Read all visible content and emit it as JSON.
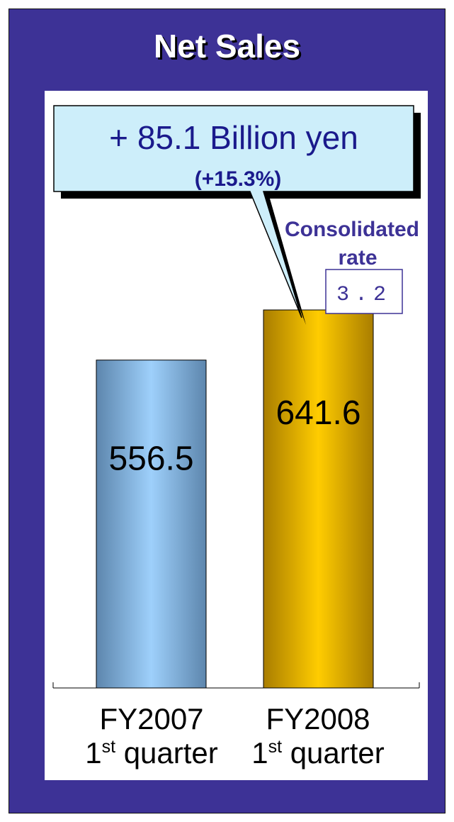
{
  "title": "Net Sales",
  "callout": {
    "main": "+ 85.1 Billion yen",
    "sub": "(+15.3%)"
  },
  "consolidated": {
    "label_line1": "Consolidated",
    "label_line2": "rate",
    "value": "3.2"
  },
  "categories": [
    {
      "year": "FY2007",
      "ordinal": "1",
      "suffix": "st",
      "word": "quarter"
    },
    {
      "year": "FY2008",
      "ordinal": "1",
      "suffix": "st",
      "word": "quarter"
    }
  ],
  "colors": {
    "frame": "#3d3296",
    "callout_fill": "#cdeefa",
    "callout_text": "#1a1a8c",
    "bar1": "#8fc3f0",
    "bar2": "#ffcc00"
  },
  "chart_data": {
    "type": "bar",
    "title": "Net Sales",
    "categories": [
      "FY2007 1st quarter",
      "FY2008 1st quarter"
    ],
    "values": [
      556.5,
      641.6
    ],
    "value_labels": [
      "556.5",
      "641.6"
    ],
    "ylim": [
      0,
      800
    ],
    "annotation": "+ 85.1 Billion yen (+15.3%)",
    "xlabel": "",
    "ylabel": ""
  }
}
